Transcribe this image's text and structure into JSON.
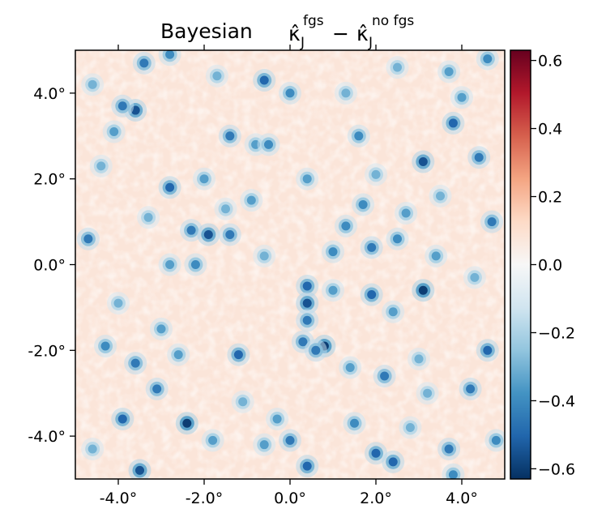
{
  "chart_data": {
    "type": "heatmap",
    "title_prefix": "Bayesian",
    "title_math": {
      "first_symbol": "κ̂",
      "first_subscript": "J",
      "first_superscript": "fgs",
      "operator": "−",
      "second_symbol": "κ̂",
      "second_subscript": "J",
      "second_superscript": "no fgs"
    },
    "x_ticks": [
      "-4.0°",
      "-2.0°",
      "0.0°",
      "2.0°",
      "4.0°"
    ],
    "x_tick_values": [
      -4,
      -2,
      0,
      2,
      4
    ],
    "y_ticks": [
      "4.0°",
      "2.0°",
      "0.0°",
      "-2.0°",
      "-4.0°"
    ],
    "y_tick_values": [
      4,
      2,
      0,
      -2,
      -4
    ],
    "xlim": [
      -5,
      5
    ],
    "ylim": [
      -5,
      5
    ],
    "colorbar": {
      "colormap": "RdBu_r",
      "range": [
        -0.63,
        0.63
      ],
      "tick_labels": [
        "0.6",
        "0.4",
        "0.2",
        "0.0",
        "−0.2",
        "−0.4",
        "−0.6"
      ],
      "tick_values": [
        0.6,
        0.4,
        0.2,
        0.0,
        -0.2,
        -0.4,
        -0.6
      ],
      "colors": [
        "#053061",
        "#2166ac",
        "#4393c3",
        "#92c5de",
        "#d1e5f0",
        "#f7f7f7",
        "#fddbc7",
        "#f4a582",
        "#d6604d",
        "#b2182b",
        "#67001f"
      ]
    },
    "background_level": 0.08,
    "blobs": [
      {
        "x": -3.6,
        "y": 3.6,
        "v": -0.55
      },
      {
        "x": -3.9,
        "y": 3.7,
        "v": -0.45
      },
      {
        "x": -2.8,
        "y": 4.9,
        "v": -0.4
      },
      {
        "x": -3.4,
        "y": 4.7,
        "v": -0.45
      },
      {
        "x": -0.6,
        "y": 4.3,
        "v": -0.5
      },
      {
        "x": -1.4,
        "y": 3.0,
        "v": -0.45
      },
      {
        "x": -0.8,
        "y": 2.8,
        "v": -0.35
      },
      {
        "x": -0.5,
        "y": 2.8,
        "v": -0.4
      },
      {
        "x": -2.8,
        "y": 1.8,
        "v": -0.5
      },
      {
        "x": -2.3,
        "y": 0.8,
        "v": -0.45
      },
      {
        "x": -1.9,
        "y": 0.7,
        "v": -0.55
      },
      {
        "x": -1.4,
        "y": 0.7,
        "v": -0.45
      },
      {
        "x": -4.7,
        "y": 0.6,
        "v": -0.45
      },
      {
        "x": -2.2,
        "y": 0.0,
        "v": -0.4
      },
      {
        "x": 0.4,
        "y": -0.5,
        "v": -0.5
      },
      {
        "x": 0.4,
        "y": -0.9,
        "v": -0.55
      },
      {
        "x": 0.4,
        "y": -1.3,
        "v": -0.45
      },
      {
        "x": 0.8,
        "y": -1.9,
        "v": -0.6
      },
      {
        "x": 0.3,
        "y": -1.8,
        "v": -0.45
      },
      {
        "x": 0.6,
        "y": -2.0,
        "v": -0.45
      },
      {
        "x": 0.0,
        "y": 4.0,
        "v": -0.4
      },
      {
        "x": 1.6,
        "y": 3.0,
        "v": -0.4
      },
      {
        "x": 3.1,
        "y": -0.6,
        "v": -0.6
      },
      {
        "x": 3.1,
        "y": 2.4,
        "v": -0.55
      },
      {
        "x": 3.8,
        "y": 3.3,
        "v": -0.5
      },
      {
        "x": 4.6,
        "y": 4.8,
        "v": -0.4
      },
      {
        "x": 1.9,
        "y": -0.7,
        "v": -0.5
      },
      {
        "x": 1.9,
        "y": 0.4,
        "v": -0.45
      },
      {
        "x": 1.7,
        "y": 1.4,
        "v": -0.4
      },
      {
        "x": 2.5,
        "y": 0.6,
        "v": -0.4
      },
      {
        "x": 2.7,
        "y": 1.2,
        "v": -0.35
      },
      {
        "x": 1.3,
        "y": 0.9,
        "v": -0.4
      },
      {
        "x": 1.0,
        "y": 0.3,
        "v": -0.4
      },
      {
        "x": 4.4,
        "y": 2.5,
        "v": -0.45
      },
      {
        "x": 4.7,
        "y": 1.0,
        "v": -0.45
      },
      {
        "x": 4.6,
        "y": -2.0,
        "v": -0.5
      },
      {
        "x": 4.2,
        "y": -2.9,
        "v": -0.45
      },
      {
        "x": 2.2,
        "y": -2.6,
        "v": -0.45
      },
      {
        "x": -1.2,
        "y": -2.1,
        "v": -0.5
      },
      {
        "x": -2.4,
        "y": -3.7,
        "v": -0.6
      },
      {
        "x": -3.9,
        "y": -3.6,
        "v": -0.5
      },
      {
        "x": -3.6,
        "y": -2.3,
        "v": -0.45
      },
      {
        "x": -4.3,
        "y": -1.9,
        "v": -0.4
      },
      {
        "x": -3.1,
        "y": -2.9,
        "v": -0.45
      },
      {
        "x": -3.5,
        "y": -4.8,
        "v": -0.55
      },
      {
        "x": 0.4,
        "y": -4.7,
        "v": -0.5
      },
      {
        "x": 0.0,
        "y": -4.1,
        "v": -0.45
      },
      {
        "x": 2.0,
        "y": -4.4,
        "v": -0.5
      },
      {
        "x": 2.4,
        "y": -4.6,
        "v": -0.5
      },
      {
        "x": 3.7,
        "y": -4.3,
        "v": -0.45
      },
      {
        "x": 3.8,
        "y": -4.9,
        "v": -0.4
      },
      {
        "x": 1.5,
        "y": -3.7,
        "v": -0.4
      },
      {
        "x": -0.6,
        "y": -4.2,
        "v": -0.35
      },
      {
        "x": -1.8,
        "y": -4.1,
        "v": -0.35
      },
      {
        "x": 4.8,
        "y": -4.1,
        "v": -0.4
      },
      {
        "x": -4.6,
        "y": -4.3,
        "v": -0.3
      },
      {
        "x": -0.9,
        "y": 1.5,
        "v": -0.35
      },
      {
        "x": -2.0,
        "y": 2.0,
        "v": -0.35
      },
      {
        "x": 2.4,
        "y": -1.1,
        "v": -0.35
      },
      {
        "x": 1.0,
        "y": -0.6,
        "v": -0.35
      },
      {
        "x": -3.0,
        "y": -1.5,
        "v": -0.35
      },
      {
        "x": -4.0,
        "y": -0.9,
        "v": -0.3
      },
      {
        "x": 3.5,
        "y": 1.6,
        "v": -0.3
      },
      {
        "x": 3.4,
        "y": 0.2,
        "v": -0.35
      },
      {
        "x": 4.3,
        "y": -0.3,
        "v": -0.3
      },
      {
        "x": 3.7,
        "y": 4.5,
        "v": -0.35
      },
      {
        "x": 2.5,
        "y": 4.6,
        "v": -0.3
      },
      {
        "x": 1.3,
        "y": 4.0,
        "v": -0.3
      },
      {
        "x": -4.4,
        "y": 2.3,
        "v": -0.3
      },
      {
        "x": -4.6,
        "y": 4.2,
        "v": -0.3
      },
      {
        "x": -1.1,
        "y": -3.2,
        "v": -0.3
      },
      {
        "x": 3.2,
        "y": -3.0,
        "v": -0.3
      },
      {
        "x": -2.8,
        "y": 0.0,
        "v": -0.35
      },
      {
        "x": -0.6,
        "y": 0.2,
        "v": -0.3
      },
      {
        "x": -4.1,
        "y": 3.1,
        "v": -0.35
      },
      {
        "x": -1.7,
        "y": 4.4,
        "v": -0.3
      },
      {
        "x": 0.4,
        "y": 2.0,
        "v": -0.35
      },
      {
        "x": 1.4,
        "y": -2.4,
        "v": -0.35
      },
      {
        "x": 3.0,
        "y": -2.2,
        "v": -0.3
      },
      {
        "x": -2.6,
        "y": -2.1,
        "v": -0.35
      },
      {
        "x": -0.3,
        "y": -3.6,
        "v": -0.35
      },
      {
        "x": 2.8,
        "y": -3.8,
        "v": -0.3
      },
      {
        "x": -1.5,
        "y": 1.3,
        "v": -0.3
      },
      {
        "x": 2.0,
        "y": 2.1,
        "v": -0.3
      },
      {
        "x": 4.0,
        "y": 3.9,
        "v": -0.35
      },
      {
        "x": -3.3,
        "y": 1.1,
        "v": -0.3
      }
    ]
  }
}
